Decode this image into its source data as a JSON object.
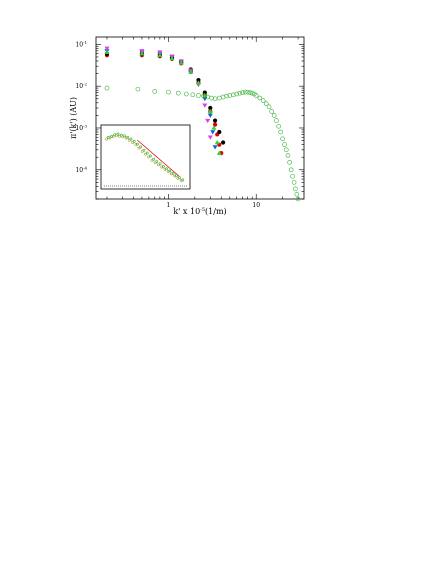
{
  "chart_data": {
    "type": "scatter",
    "xlabel": "k' x 10",
    "xlabel_exp": "-5",
    "xlabel_unit": "(1/m)",
    "ylabel": "π'(k') (AU)",
    "x_scale": "log",
    "y_scale": "log",
    "xlim": [
      0.15,
      35
    ],
    "ylim": [
      2e-05,
      0.15
    ],
    "x_ticks": [
      {
        "value": 1,
        "label": "1"
      },
      {
        "value": 10,
        "label": "10"
      }
    ],
    "y_ticks": [
      {
        "value": 0.1,
        "base": "10",
        "exp": "-1"
      },
      {
        "value": 0.01,
        "base": "10",
        "exp": "-2"
      },
      {
        "value": 0.001,
        "base": "10",
        "exp": "-3"
      },
      {
        "value": 0.0001,
        "base": "10",
        "exp": "-4"
      }
    ],
    "grid": false,
    "series": [
      {
        "marker": "circle-filled",
        "color": "#e00000",
        "x": [
          0.2,
          0.5,
          0.8,
          1.1,
          1.4,
          1.8,
          2.2,
          2.6,
          3.0,
          3.4,
          3.6,
          3.8,
          4.0
        ],
        "y": [
          0.055,
          0.055,
          0.052,
          0.045,
          0.035,
          0.022,
          0.012,
          0.006,
          0.0025,
          0.0012,
          0.0007,
          0.0004,
          0.00025
        ]
      },
      {
        "marker": "circle-filled",
        "color": "#000000",
        "x": [
          0.2,
          0.5,
          0.8,
          1.1,
          1.4,
          1.8,
          2.2,
          2.6,
          3.0,
          3.4,
          3.8,
          4.2
        ],
        "y": [
          0.06,
          0.06,
          0.056,
          0.048,
          0.038,
          0.025,
          0.014,
          0.007,
          0.003,
          0.0015,
          0.0008,
          0.00045
        ]
      },
      {
        "marker": "triangle-down",
        "color": "#1060e0",
        "x": [
          0.2,
          0.5,
          0.8,
          1.1,
          1.4,
          1.8,
          2.2,
          2.6,
          3.0,
          3.2,
          3.4
        ],
        "y": [
          0.07,
          0.065,
          0.06,
          0.05,
          0.038,
          0.022,
          0.011,
          0.005,
          0.002,
          0.0008,
          0.00035
        ]
      },
      {
        "marker": "triangle-down",
        "color": "#e040e0",
        "x": [
          0.2,
          0.5,
          0.8,
          1.1,
          1.4,
          1.8,
          2.2,
          2.6,
          2.8,
          3.0
        ],
        "y": [
          0.08,
          0.07,
          0.065,
          0.052,
          0.04,
          0.024,
          0.011,
          0.0035,
          0.0015,
          0.0006
        ]
      },
      {
        "marker": "triangle-up",
        "color": "#30d030",
        "x": [
          0.2,
          0.5,
          0.8,
          1.1,
          1.4,
          1.8,
          2.2,
          2.6,
          3.0,
          3.3,
          3.6,
          3.8
        ],
        "y": [
          0.065,
          0.06,
          0.055,
          0.046,
          0.036,
          0.022,
          0.012,
          0.006,
          0.0025,
          0.001,
          0.00045,
          0.00025
        ]
      },
      {
        "marker": "circle-open",
        "color": "#30b030",
        "x": [
          0.2,
          0.45,
          0.7,
          1.0,
          1.3,
          1.6,
          1.9,
          2.2,
          2.5,
          2.8,
          3.1,
          3.4,
          3.8,
          4.2,
          4.6,
          5.0,
          5.5,
          6.0,
          6.5,
          7.0,
          7.5,
          8.0,
          8.5,
          9.0,
          9.5,
          10.0,
          11.0,
          12.0,
          13.0,
          14.0,
          15.0,
          16.0,
          17.0,
          18.0,
          19.0,
          20.0,
          21.0,
          22.0,
          23.0,
          24.0,
          25.0,
          26.0,
          27.0,
          28.0,
          29.0,
          30.0
        ],
        "y": [
          0.009,
          0.0085,
          0.0075,
          0.0072,
          0.0068,
          0.0065,
          0.0062,
          0.006,
          0.0058,
          0.0055,
          0.0052,
          0.005,
          0.0052,
          0.0055,
          0.0058,
          0.006,
          0.0062,
          0.0065,
          0.0068,
          0.007,
          0.0072,
          0.0072,
          0.007,
          0.0068,
          0.0065,
          0.006,
          0.0052,
          0.0045,
          0.0038,
          0.0032,
          0.0025,
          0.002,
          0.0015,
          0.0011,
          0.0008,
          0.00055,
          0.0004,
          0.0003,
          0.00022,
          0.00015,
          0.0001,
          7e-05,
          5e-05,
          3.5e-05,
          2.6e-05,
          2e-05
        ]
      }
    ],
    "inset": {
      "type": "scatter",
      "grid": false,
      "x_scale": "log",
      "y_scale": "log",
      "xlim": [
        0,
        1
      ],
      "ylim": [
        0,
        1
      ],
      "line": {
        "color": "#e02020",
        "x": [
          0.4,
          0.92
        ],
        "y": [
          0.8,
          0.15
        ]
      },
      "series": [
        {
          "marker": "circle-open",
          "color": "#b0a030",
          "x": [
            0.02,
            0.06,
            0.1,
            0.14,
            0.18,
            0.22,
            0.26,
            0.3,
            0.34,
            0.38,
            0.42,
            0.46,
            0.5,
            0.54,
            0.58,
            0.62,
            0.66,
            0.7,
            0.74,
            0.78,
            0.82,
            0.86,
            0.9,
            0.94
          ],
          "y": [
            0.82,
            0.84,
            0.86,
            0.88,
            0.87,
            0.86,
            0.84,
            0.8,
            0.76,
            0.72,
            0.66,
            0.6,
            0.55,
            0.5,
            0.44,
            0.4,
            0.36,
            0.32,
            0.28,
            0.24,
            0.2,
            0.16,
            0.12,
            0.08
          ]
        },
        {
          "marker": "circle-open",
          "color": "#30b030",
          "x": [
            0.04,
            0.08,
            0.12,
            0.16,
            0.2,
            0.24,
            0.28,
            0.32,
            0.36,
            0.4,
            0.44,
            0.48,
            0.52,
            0.56,
            0.6,
            0.64,
            0.68,
            0.72,
            0.76,
            0.8,
            0.84,
            0.88,
            0.92,
            0.96
          ],
          "y": [
            0.85,
            0.87,
            0.9,
            0.91,
            0.89,
            0.88,
            0.85,
            0.82,
            0.78,
            0.73,
            0.68,
            0.62,
            0.57,
            0.52,
            0.46,
            0.42,
            0.38,
            0.33,
            0.29,
            0.25,
            0.21,
            0.17,
            0.13,
            0.09
          ]
        }
      ]
    }
  }
}
